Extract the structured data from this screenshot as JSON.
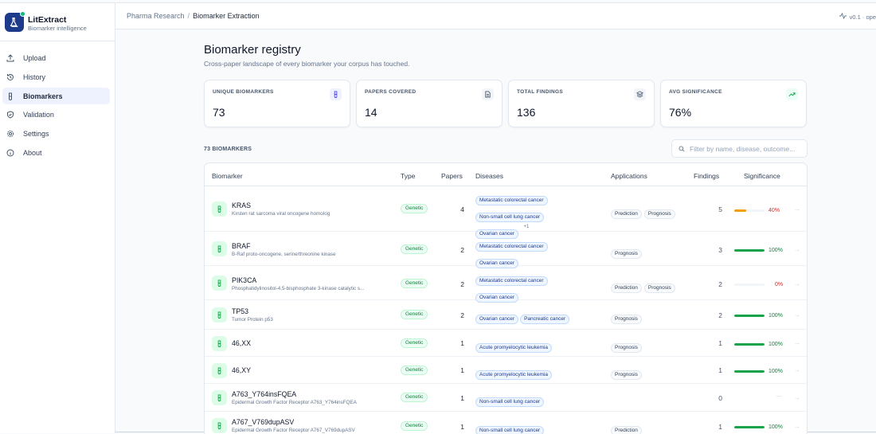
{
  "sidebar": {
    "brand_name": "LitExtract",
    "brand_sub": "Biomarker intelligence",
    "items": [
      {
        "label": "Upload",
        "icon": "upload-icon"
      },
      {
        "label": "History",
        "icon": "history-icon"
      },
      {
        "label": "Biomarkers",
        "icon": "test-tube-icon",
        "active": true
      },
      {
        "label": "Validation",
        "icon": "shield-check-icon"
      },
      {
        "label": "Settings",
        "icon": "gear-icon"
      },
      {
        "label": "About",
        "icon": "info-icon"
      }
    ]
  },
  "topbar": {
    "crumb_parent": "Pharma Research",
    "crumb_sep": "/",
    "crumb_current": "Biomarker Extraction",
    "version": "v0.1 · ope"
  },
  "page": {
    "title": "Biomarker registry",
    "subtitle": "Cross-paper landscape of every biomarker your corpus has touched."
  },
  "stats": [
    {
      "label": "UNIQUE BIOMARKERS",
      "value": "73",
      "icon": "test-tube-icon",
      "tint": "#eef2ff"
    },
    {
      "label": "PAPERS COVERED",
      "value": "14",
      "icon": "document-icon",
      "tint": "#f1f5f9"
    },
    {
      "label": "TOTAL FINDINGS",
      "value": "136",
      "icon": "layers-icon",
      "tint": "#f1f5f9"
    },
    {
      "label": "AVG SIGNIFICANCE",
      "value": "76%",
      "icon": "trend-up-icon",
      "tint": "#ecfdf5"
    }
  ],
  "list": {
    "count_label": "73 BIOMARKERS",
    "filter_placeholder": "Filter by name, disease, outcome..."
  },
  "table": {
    "headers": {
      "biomarker": "Biomarker",
      "type": "Type",
      "papers": "Papers",
      "diseases": "Diseases",
      "applications": "Applications",
      "findings": "Findings",
      "significance": "Significance"
    },
    "rows": [
      {
        "name": "KRAS",
        "full": "Kirsten rat sarcoma viral oncogene homolog",
        "type": "Genetic",
        "papers": "4",
        "diseases": [
          "Metastatic colorectal cancer",
          "Non-small cell lung cancer",
          "Ovarian cancer"
        ],
        "more": "+1",
        "applications": [
          "Prediction",
          "Prognosis"
        ],
        "findings": "5",
        "significance": 40,
        "sig_label": "40%",
        "color": "#f59e0b",
        "text_color": "#dc2626"
      },
      {
        "name": "BRAF",
        "full": "B-Raf proto-oncogene, serine/threonine kinase",
        "type": "Genetic",
        "papers": "2",
        "diseases": [
          "Metastatic colorectal cancer",
          "Ovarian cancer"
        ],
        "more": "",
        "applications": [
          "Prognosis"
        ],
        "findings": "3",
        "significance": 100,
        "sig_label": "100%",
        "color": "#16a34a",
        "text_color": "#15803d"
      },
      {
        "name": "PIK3CA",
        "full": "Phosphatidylinositol-4,5-bisphosphate 3-kinase catalytic s...",
        "type": "Genetic",
        "papers": "2",
        "diseases": [
          "Metastatic colorectal cancer",
          "Ovarian cancer"
        ],
        "more": "",
        "applications": [
          "Prediction",
          "Prognosis"
        ],
        "findings": "2",
        "significance": 0,
        "sig_label": "0%",
        "color": "#dc2626",
        "text_color": "#dc2626"
      },
      {
        "name": "TP53",
        "full": "Tumor Protein p53",
        "type": "Genetic",
        "papers": "2",
        "diseases": [
          "Ovarian cancer",
          "Pancreatic cancer"
        ],
        "more": "",
        "applications": [
          "Prognosis"
        ],
        "findings": "2",
        "significance": 100,
        "sig_label": "100%",
        "color": "#16a34a",
        "text_color": "#15803d"
      },
      {
        "name": "46,XX",
        "full": "",
        "type": "Genetic",
        "papers": "1",
        "diseases": [
          "Acute promyelocytic leukemia"
        ],
        "more": "",
        "applications": [
          "Prognosis"
        ],
        "findings": "1",
        "significance": 100,
        "sig_label": "100%",
        "color": "#16a34a",
        "text_color": "#15803d"
      },
      {
        "name": "46,XY",
        "full": "",
        "type": "Genetic",
        "papers": "1",
        "diseases": [
          "Acute promyelocytic leukemia"
        ],
        "more": "",
        "applications": [
          "Prognosis"
        ],
        "findings": "1",
        "significance": 100,
        "sig_label": "100%",
        "color": "#16a34a",
        "text_color": "#15803d"
      },
      {
        "name": "A763_Y764insFQEA",
        "full": "Epidermal Growth Factor Receptor A763_Y764insFQEA",
        "type": "Genetic",
        "papers": "1",
        "diseases": [
          "Non-small cell lung cancer"
        ],
        "more": "",
        "applications": [],
        "findings": "0",
        "significance": null,
        "sig_label": "—",
        "color": "#cbd5e1",
        "text_color": "#cbd5e1"
      },
      {
        "name": "A767_V769dupASV",
        "full": "Epidermal Growth Factor Receptor A767_V769dupASV",
        "type": "Genetic",
        "papers": "1",
        "diseases": [
          "Non-small cell lung cancer"
        ],
        "more": "",
        "applications": [
          "Prediction"
        ],
        "findings": "1",
        "significance": 100,
        "sig_label": "100%",
        "color": "#16a34a",
        "text_color": "#15803d"
      }
    ]
  },
  "colors": {
    "accent": "#1e3a8a",
    "success": "#16a34a",
    "warning": "#f59e0b",
    "danger": "#dc2626"
  }
}
